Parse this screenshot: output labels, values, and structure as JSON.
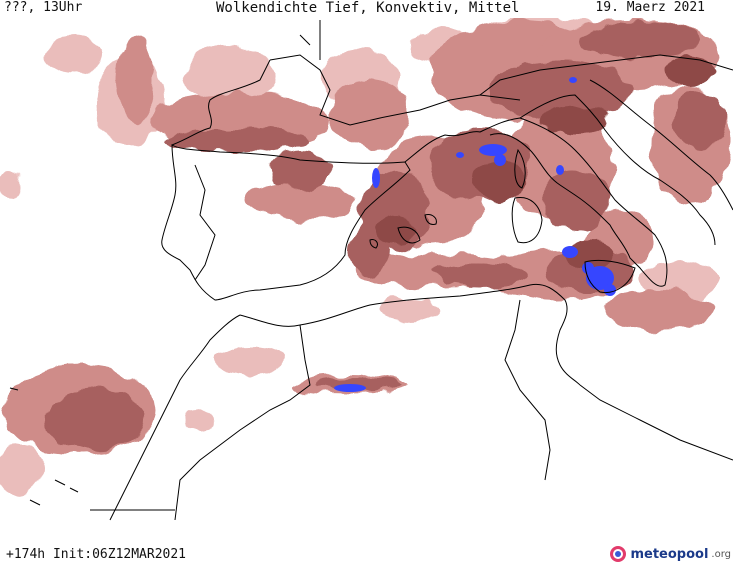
{
  "header": {
    "left": "???, 13Uhr",
    "title": "Wolkendichte  Tief, Konvektiv, Mittel",
    "date": "19. Maerz 2021"
  },
  "footer": {
    "run_info": "+174h Init:06Z12MAR2021",
    "logo_text": "meteopool",
    "logo_ext": ".org"
  },
  "colors": {
    "cloud_light": "#e8b6b4",
    "cloud_medium": "#cf8c89",
    "cloud_dense": "#a7615e",
    "cloud_very_dense": "#8e4a47",
    "convective": "#3646ff",
    "coastline": "#000000",
    "logo": "#1b3a8a"
  }
}
